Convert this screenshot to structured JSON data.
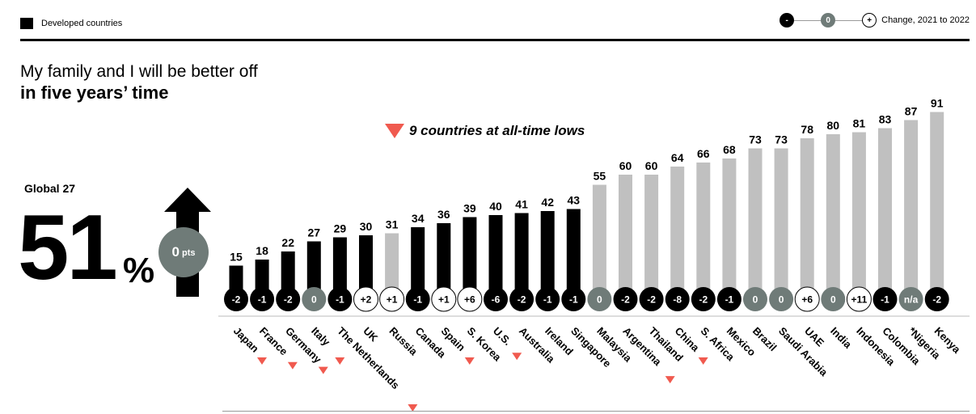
{
  "legend": {
    "developed_label": "Developed countries"
  },
  "change_key": {
    "neg": "-",
    "zero": "0",
    "pos": "+",
    "label": "Change, 2021 to 2022"
  },
  "title": {
    "line1": "My family and I will be better off",
    "line2": "in five years’ time"
  },
  "lows_note": "9 countries at all-time lows",
  "global": {
    "label": "Global 27",
    "value": "51",
    "unit": "%",
    "change_value": "0",
    "change_unit": "pts"
  },
  "colors": {
    "developed": "#000000",
    "developing": "#c0c0c0",
    "decline": "#000000",
    "no_change": "#6f7b78",
    "increase": "#ffffff",
    "low_marker": "#f05a4f"
  },
  "chart_data": {
    "type": "bar",
    "categories": [
      "Japan",
      "France",
      "Germany",
      "Italy",
      "The Netherlands",
      "UK",
      "Russia",
      "Canada",
      "Spain",
      "S. Korea",
      "U.S.",
      "Australia",
      "Ireland",
      "Singapore",
      "Malaysia",
      "Argentina",
      "Thailand",
      "China",
      "S. Africa",
      "Mexico",
      "Brazil",
      "Saudi Arabia",
      "UAE",
      "India",
      "Indonesia",
      "Colombia",
      "*Nigeria",
      "Kenya"
    ],
    "values": [
      15,
      18,
      22,
      27,
      29,
      30,
      31,
      34,
      36,
      39,
      40,
      41,
      42,
      43,
      55,
      60,
      60,
      64,
      66,
      68,
      73,
      73,
      78,
      80,
      81,
      83,
      87,
      91
    ],
    "developed": [
      true,
      true,
      true,
      true,
      true,
      true,
      false,
      true,
      true,
      true,
      true,
      true,
      true,
      true,
      false,
      false,
      false,
      false,
      false,
      false,
      false,
      false,
      false,
      false,
      false,
      false,
      false,
      false
    ],
    "change": [
      "-2",
      "-1",
      "-2",
      "0",
      "-1",
      "+2",
      "+1",
      "-1",
      "+1",
      "+6",
      "-6",
      "-2",
      "-1",
      "-1",
      "0",
      "-2",
      "-2",
      "-8",
      "-2",
      "-1",
      "0",
      "0",
      "+6",
      "0",
      "+11",
      "-1",
      "n/a",
      "-2"
    ],
    "all_time_low": [
      true,
      true,
      true,
      true,
      true,
      false,
      false,
      false,
      true,
      false,
      true,
      false,
      false,
      false,
      false,
      true,
      false,
      true,
      false,
      false,
      false,
      false,
      false,
      false,
      false,
      false,
      false,
      false
    ],
    "ylim": [
      0,
      100
    ]
  }
}
